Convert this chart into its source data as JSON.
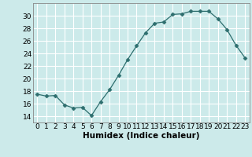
{
  "x": [
    0,
    1,
    2,
    3,
    4,
    5,
    6,
    7,
    8,
    9,
    10,
    11,
    12,
    13,
    14,
    15,
    16,
    17,
    18,
    19,
    20,
    21,
    22,
    23
  ],
  "y": [
    17.5,
    17.2,
    17.3,
    15.8,
    15.3,
    15.4,
    14.1,
    16.3,
    18.2,
    20.5,
    23.0,
    25.2,
    27.3,
    28.8,
    29.0,
    30.2,
    30.3,
    30.7,
    30.7,
    30.7,
    29.5,
    27.8,
    25.3,
    23.3
  ],
  "line_color": "#2d6e6e",
  "marker": "D",
  "marker_size": 2.5,
  "bg_color": "#cceaea",
  "grid_color": "#ffffff",
  "xlabel": "Humidex (Indice chaleur)",
  "ylim": [
    13,
    32
  ],
  "xlim": [
    -0.5,
    23.5
  ],
  "yticks": [
    14,
    16,
    18,
    20,
    22,
    24,
    26,
    28,
    30
  ],
  "xticks": [
    0,
    1,
    2,
    3,
    4,
    5,
    6,
    7,
    8,
    9,
    10,
    11,
    12,
    13,
    14,
    15,
    16,
    17,
    18,
    19,
    20,
    21,
    22,
    23
  ],
  "xtick_labels": [
    "0",
    "1",
    "2",
    "3",
    "4",
    "5",
    "6",
    "7",
    "8",
    "9",
    "10",
    "11",
    "12",
    "13",
    "14",
    "15",
    "16",
    "17",
    "18",
    "19",
    "20",
    "21",
    "22",
    "23"
  ],
  "tick_fontsize": 6.5,
  "xlabel_fontsize": 7.5
}
